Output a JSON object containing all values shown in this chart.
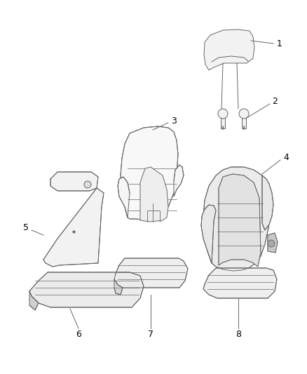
{
  "background_color": "#ffffff",
  "line_color": "#666666",
  "fill_color": "#e8e8e8",
  "fill_light": "#f2f2f2",
  "text_color": "#000000",
  "figsize": [
    4.38,
    5.33
  ],
  "dpi": 100,
  "lw": 0.7
}
